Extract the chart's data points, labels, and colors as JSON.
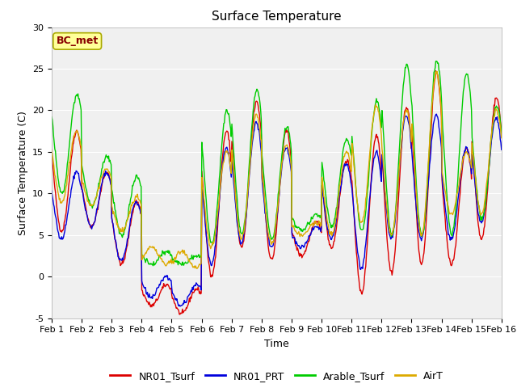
{
  "title": "Surface Temperature",
  "xlabel": "Time",
  "ylabel": "Surface Temperature (C)",
  "ylim": [
    -5,
    30
  ],
  "xlim": [
    0,
    15
  ],
  "xtick_labels": [
    "Feb 1",
    "Feb 2",
    "Feb 3",
    "Feb 4",
    "Feb 5",
    "Feb 6",
    "Feb 7",
    "Feb 8",
    "Feb 9",
    "Feb 10",
    "Feb 11",
    "Feb 12",
    "Feb 13",
    "Feb 14",
    "Feb 15",
    "Feb 16"
  ],
  "ytick_labels": [
    "-5",
    "0",
    "5",
    "10",
    "15",
    "20",
    "25",
    "30"
  ],
  "ytick_values": [
    -5,
    0,
    5,
    10,
    15,
    20,
    25,
    30
  ],
  "line_colors": {
    "NR01_Tsurf": "#dd0000",
    "NR01_PRT": "#0000dd",
    "Arable_Tsurf": "#00cc00",
    "AirT": "#ddaa00"
  },
  "legend_labels": [
    "NR01_Tsurf",
    "NR01_PRT",
    "Arable_Tsurf",
    "AirT"
  ],
  "annotation_text": "BC_met",
  "annotation_color": "#880000",
  "annotation_bg": "#ffff99",
  "annotation_edge": "#aaaa00",
  "background_color": "#f0f0f0",
  "title_fontsize": 11,
  "axis_fontsize": 9,
  "tick_fontsize": 8,
  "legend_fontsize": 9
}
